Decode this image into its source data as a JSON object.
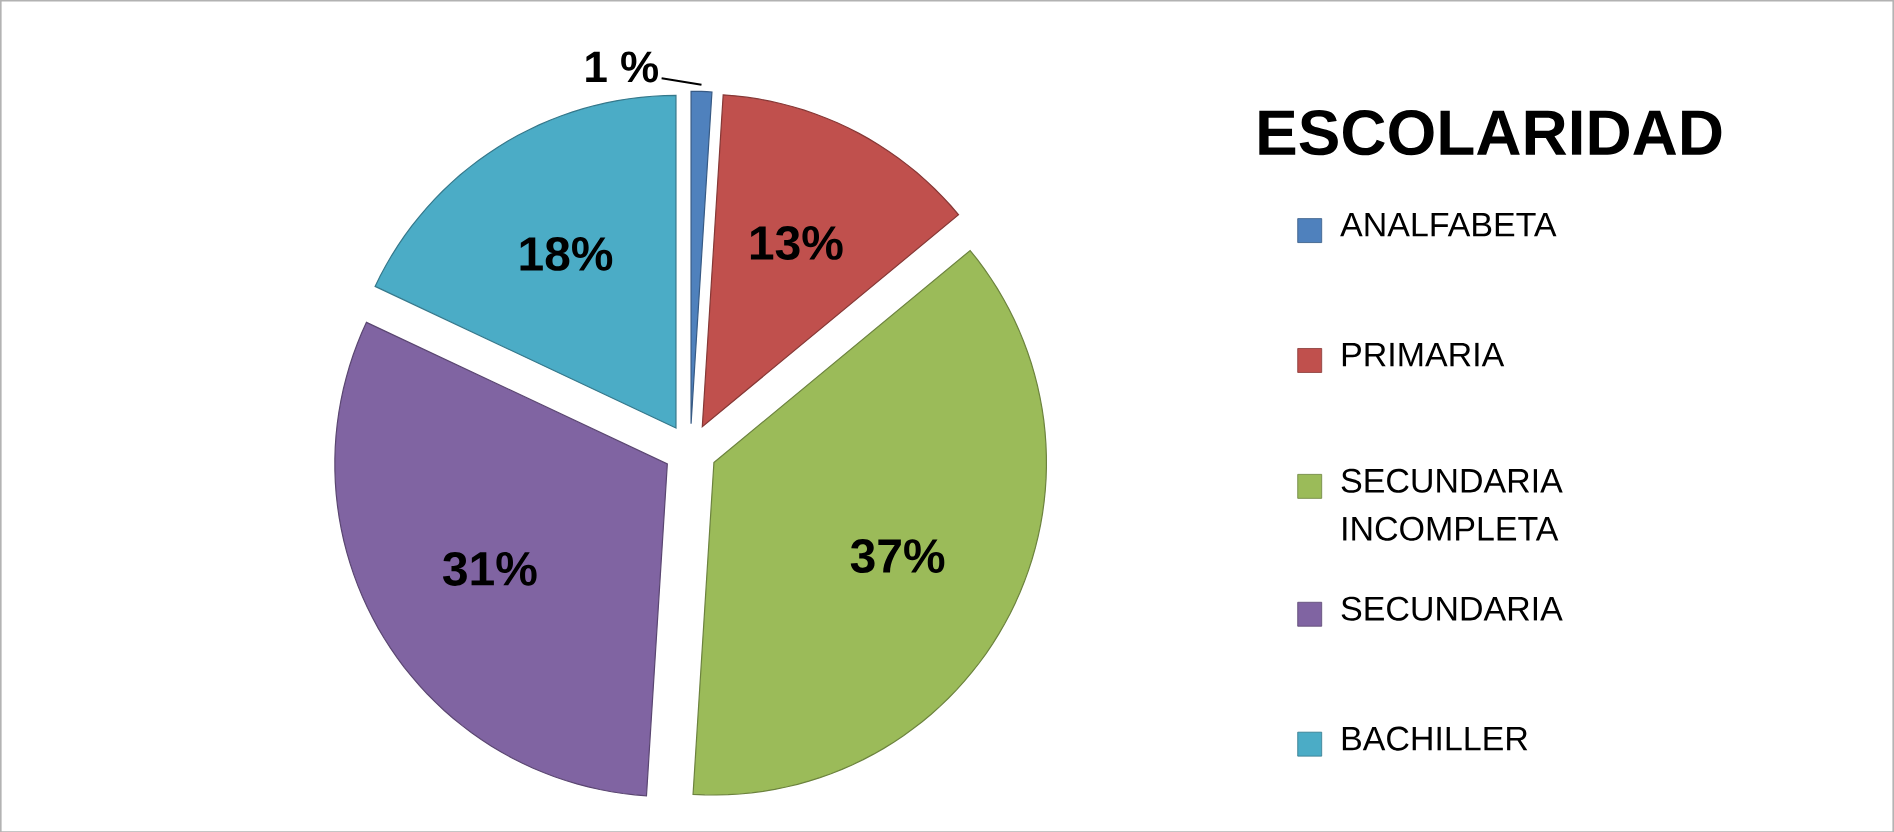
{
  "chart_data": {
    "type": "pie",
    "title": "ESCOLARIDAD",
    "categories": [
      "ANALFABETA",
      "PRIMARIA",
      "SECUNDARIA INCOMPLETA",
      "SECUNDARIA",
      "BACHILLER"
    ],
    "values": [
      1,
      13,
      37,
      31,
      18
    ],
    "value_labels": [
      "1 %",
      "13%",
      "37%",
      "31%",
      "18%"
    ],
    "colors": [
      "#4f81bd",
      "#c0504d",
      "#9bbb59",
      "#8064a2",
      "#4bacc6"
    ],
    "legend": "right"
  }
}
